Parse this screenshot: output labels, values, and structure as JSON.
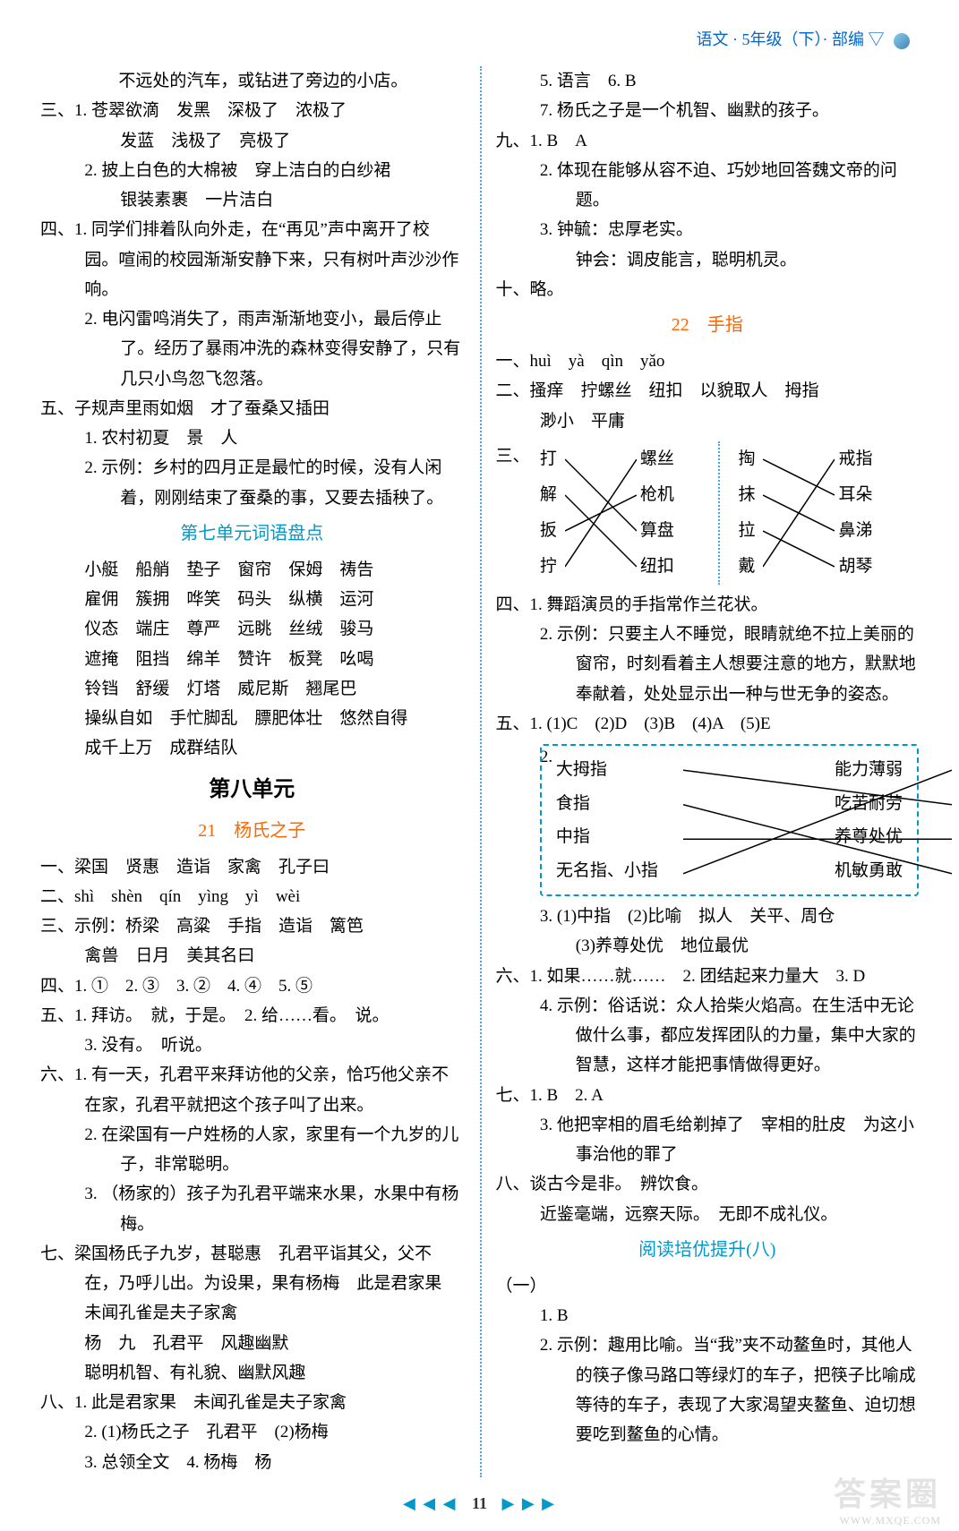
{
  "header": {
    "text": "语文 · 5年级（下）· 部编 ▽",
    "color": "#0066cc"
  },
  "colors": {
    "orange": "#ff6600",
    "blue": "#0099cc",
    "dotted": "#4da6d9",
    "text": "#000000",
    "line": "#000000"
  },
  "left": {
    "l0": "　　不远处的汽车，或钻进了旁边的小店。",
    "l1": "三、1. 苍翠欲滴　发黑　深极了　浓极了",
    "l1b": "发蓝　浅极了　亮极了",
    "l2": "2. 披上白色的大棉被　穿上洁白的白纱裙",
    "l2b": "银装素裹　一片洁白",
    "l3": "四、1. 同学们排着队向外走，在“再见”声中离开了校园。喧闹的校园渐渐安静下来，只有树叶声沙沙作响。",
    "l4": "2. 电闪雷鸣消失了，雨声渐渐地变小，最后停止了。经历了暴雨冲洗的森林变得安静了，只有几只小鸟忽飞忽落。",
    "l5": "五、子规声里雨如烟　才了蚕桑又插田",
    "l5a": "1. 农村初夏　景　人",
    "l5b": "2. 示例：乡村的四月正是最忙的时候，没有人闲着，刚刚结束了蚕桑的事，又要去插秧了。",
    "title7": "第七单元词语盘点",
    "w1": "小艇　船艄　垫子　窗帘　保姆　祷告",
    "w2": "雇佣　簇拥　哗笑　码头　纵横　运河",
    "w3": "仪态　端庄　尊严　远眺　丝绒　骏马",
    "w4": "遮掩　阻挡　绵羊　赞许　板凳　吆喝",
    "w5": "铃铛　舒缓　灯塔　威尼斯　翘尾巴",
    "w6": "操纵自如　手忙脚乱　膘肥体壮　悠然自得",
    "w7": "成千上万　成群结队",
    "unit8": "第八单元",
    "title21": "21　杨氏之子",
    "a1": "一、梁国　贤惠　造诣　家禽　孔子曰",
    "a2": "二、shì　shèn　qín　yìng　yì　wèi",
    "a3": "三、示例：桥梁　高粱　手指　造诣　篱笆",
    "a3b": "禽兽　日月　美其名曰",
    "a4": "四、1. ①　2. ③　3. ②　4. ④　5. ⑤",
    "a5": "五、1. 拜访。　就，于是。　2. 给……看。　说。",
    "a5b": "3. 没有。　听说。",
    "a6": "六、1. 有一天，孔君平来拜访他的父亲，恰巧他父亲不在家，孔君平就把这个孩子叫了出来。",
    "a6b": "2. 在梁国有一户姓杨的人家，家里有一个九岁的儿子，非常聪明。",
    "a6c": "3. （杨家的）孩子为孔君平端来水果，水果中有杨梅。",
    "a7": "七、梁国杨氏子九岁，甚聪惠　孔君平诣其父，父不在，乃呼儿出。为设果，果有杨梅　此是君家果　未闻孔雀是夫子家禽",
    "a7b": "杨　九　孔君平　风趣幽默",
    "a7c": "聪明机智、有礼貌、幽默风趣",
    "a8": "八、1. 此是君家果　未闻孔雀是夫子家禽",
    "a8b": "2. (1)杨氏之子　孔君平　(2)杨梅",
    "a8c": "3. 总领全文　4. 杨梅　杨"
  },
  "right": {
    "r0": "5. 语言　6. B",
    "r1": "7. 杨氏之子是一个机智、幽默的孩子。",
    "r2": "九、1. B　A",
    "r2b": "2. 体现在能够从容不迫、巧妙地回答魏文帝的问题。",
    "r2c": "3. 钟毓：忠厚老实。",
    "r2d": "钟会：调皮能言，聪明机灵。",
    "r3": "十、略。",
    "title22": "22　手指",
    "b1": "一、huì　yà　qìn　yǎo",
    "b2": "二、搔痒　拧螺丝　纽扣　以貌取人　拇指",
    "b2b": "渺小　平庸",
    "b3_label": "三、",
    "match1": {
      "left": [
        "打",
        "解",
        "扳",
        "拧"
      ],
      "right": [
        "螺丝",
        "枪机",
        "算盘",
        "纽扣"
      ],
      "lines": [
        [
          0,
          2
        ],
        [
          1,
          3
        ],
        [
          2,
          1
        ],
        [
          3,
          0
        ]
      ]
    },
    "match2": {
      "left": [
        "掏",
        "抹",
        "拉",
        "戴"
      ],
      "right": [
        "戒指",
        "耳朵",
        "鼻涕",
        "胡琴"
      ],
      "lines": [
        [
          0,
          1
        ],
        [
          1,
          2
        ],
        [
          2,
          3
        ],
        [
          3,
          0
        ]
      ]
    },
    "b4": "四、1. 舞蹈演员的手指常作兰花状。",
    "b4b": "2. 示例：只要主人不睡觉，眼睛就绝不拉上美丽的窗帘，时刻看着主人想要注意的地方，默默地奉献着，处处显示出一种与世无争的姿态。",
    "b5": "五、1. (1)C　(2)D　(3)B　(4)A　(5)E",
    "b5_2label": "2.",
    "dashmatch": {
      "left": [
        "大拇指",
        "食指",
        "中指",
        "无名指、小指"
      ],
      "right": [
        "能力薄弱",
        "吃苦耐劳",
        "养尊处优",
        "机敏勇敢"
      ],
      "lines": [
        [
          0,
          1
        ],
        [
          1,
          3
        ],
        [
          2,
          2
        ],
        [
          3,
          0
        ]
      ]
    },
    "b5c": "3. (1)中指　(2)比喻　拟人　关平、周仓",
    "b5d": "(3)养尊处优　地位最优",
    "b6": "六、1. 如果……就……　2. 团结起来力量大　3. D",
    "b6b": "4. 示例：俗话说：众人拾柴火焰高。在生活中无论做什么事，都应发挥团队的力量，集中大家的智慧，这样才能把事情做得更好。",
    "b7": "七、1. B　2. A",
    "b7b": "3. 他把宰相的眉毛给剃掉了　宰相的肚皮　为这小事治他的罪了",
    "b8": "八、谈古今是非。　辨饮食。",
    "b8b": "近鉴毫端，远察天际。　无即不成礼仪。",
    "title_read": "阅读培优提升(八)",
    "c0": "（一）",
    "c1": "1. B",
    "c2": "2. 示例：趣用比喻。当“我”夹不动鳌鱼时，其他人的筷子像马路口等绿灯的车子，把筷子比喻成等待的车子，表现了大家渴望夹鳌鱼、迫切想要吃到鳌鱼的心情。"
  },
  "footer": {
    "left_arrows": "◀ ◀ ◀",
    "page": "11",
    "right_arrows": "▶ ▶ ▶"
  },
  "watermark": {
    "main": "答案圈",
    "sub": "WWW.MXQE.COM"
  }
}
